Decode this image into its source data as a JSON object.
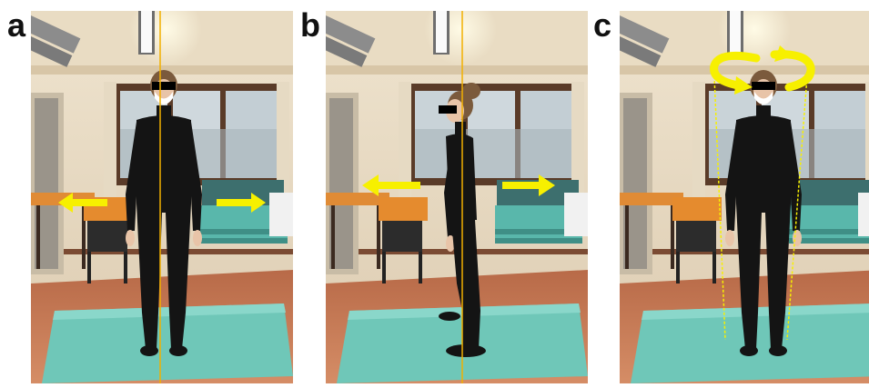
{
  "figure": {
    "panels": [
      {
        "label": "a",
        "view": "frontal",
        "marker": "double-horizontal-arrows"
      },
      {
        "label": "b",
        "view": "sagittal",
        "marker": "double-horizontal-arrows"
      },
      {
        "label": "c",
        "view": "frontal",
        "marker": "rotation-arrows"
      }
    ],
    "colors": {
      "arrow": "#f7f000",
      "reference_line": "#f2b000",
      "mat": "#6fc7b8",
      "floor": "#c97a55",
      "clothing": "#141414"
    }
  }
}
